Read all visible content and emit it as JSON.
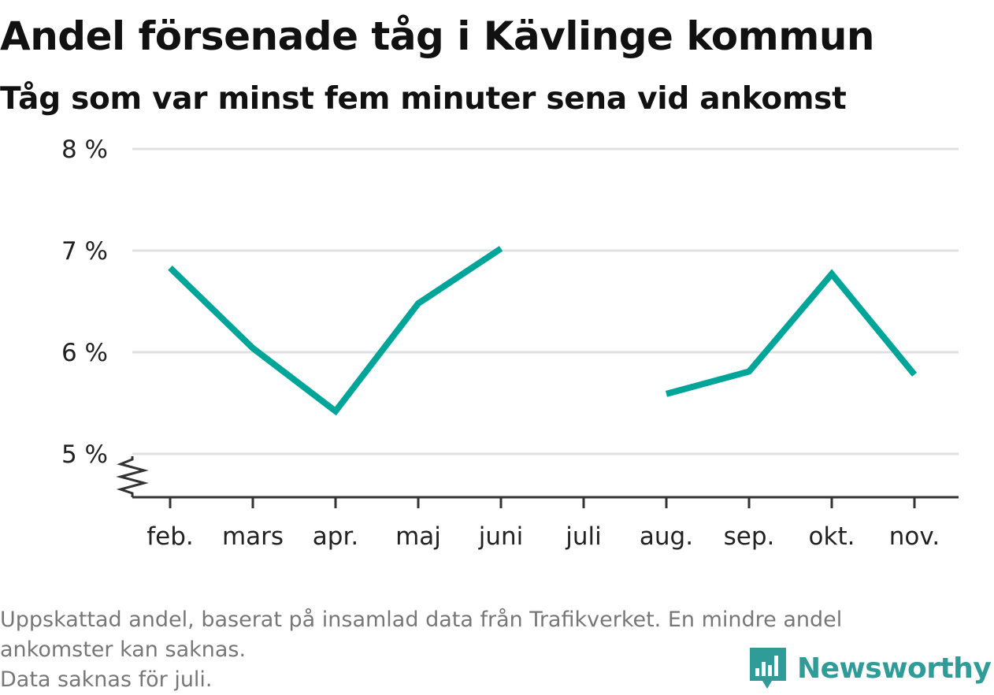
{
  "header": {
    "title": "Andel försenade tåg i Kävlinge kommun",
    "subtitle": "Tåg som var minst fem minuter sena vid ankomst"
  },
  "chart_data": {
    "type": "line",
    "categories": [
      "feb.",
      "mars",
      "apr.",
      "maj",
      "juni",
      "juli",
      "aug.",
      "sep.",
      "okt.",
      "nov."
    ],
    "series": [
      {
        "values": [
          6.83,
          6.04,
          5.42,
          6.48,
          7.02,
          null,
          5.59,
          5.81,
          6.77,
          5.78
        ]
      }
    ],
    "yticks": [
      5,
      6,
      7,
      8
    ],
    "ytick_labels": [
      "5 %",
      "6 %",
      "7 %",
      "8 %"
    ],
    "ylim": [
      4.6,
      8
    ],
    "y_axis_break": true,
    "grid": true,
    "line_color": "#00a59a",
    "grid_color": "#e0e0e0"
  },
  "footer": {
    "note_line1": "Uppskattad andel, baserat på insamlad data från Trafikverket. En mindre andel",
    "note_line2": "ankomster kan saknas.",
    "note_line3": "Data saknas för juli."
  },
  "brand": {
    "name": "Newsworthy",
    "icon": "bar-chart-speech-bubble-icon",
    "color": "#2f9c97"
  }
}
